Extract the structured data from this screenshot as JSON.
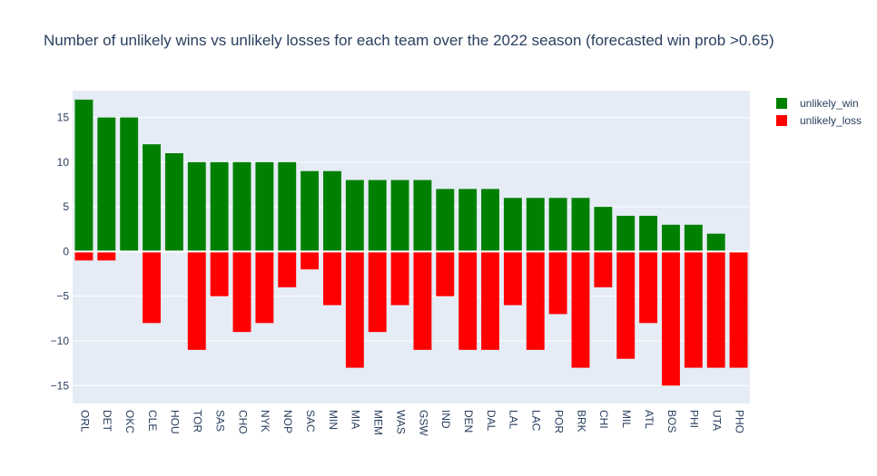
{
  "chart_data": {
    "type": "bar",
    "title": "Number of unlikely wins vs unlikely losses for each team over the 2022 season (forecasted win prob >0.65)",
    "categories": [
      "ORL",
      "DET",
      "OKC",
      "CLE",
      "HOU",
      "TOR",
      "SAS",
      "CHO",
      "NYK",
      "NOP",
      "SAC",
      "MIN",
      "MIA",
      "MEM",
      "WAS",
      "GSW",
      "IND",
      "DEN",
      "DAL",
      "LAL",
      "LAC",
      "POR",
      "BRK",
      "CHI",
      "MIL",
      "ATL",
      "BOS",
      "PHI",
      "UTA",
      "PHO"
    ],
    "series": [
      {
        "name": "unlikely_win",
        "color": "#008000",
        "values": [
          17,
          15,
          15,
          12,
          11,
          10,
          10,
          10,
          10,
          10,
          9,
          9,
          8,
          8,
          8,
          8,
          7,
          7,
          7,
          6,
          6,
          6,
          6,
          5,
          4,
          4,
          3,
          3,
          2,
          0
        ]
      },
      {
        "name": "unlikely_loss",
        "color": "#ff0000",
        "values": [
          -1,
          -1,
          0,
          -8,
          0,
          -11,
          -5,
          -9,
          -8,
          -4,
          -2,
          -6,
          -13,
          -9,
          -6,
          -11,
          -5,
          -11,
          -11,
          -6,
          -11,
          -7,
          -13,
          -4,
          -12,
          -8,
          -15,
          -13,
          -13,
          -13
        ]
      }
    ],
    "barmode": "relative",
    "ylim": [
      -17,
      18
    ],
    "yticks": [
      -15,
      -10,
      -5,
      0,
      5,
      10,
      15
    ],
    "xlabel": "",
    "ylabel": "",
    "grid": true,
    "legend_position": "top-right",
    "plot_background": "#e5ecf6"
  }
}
